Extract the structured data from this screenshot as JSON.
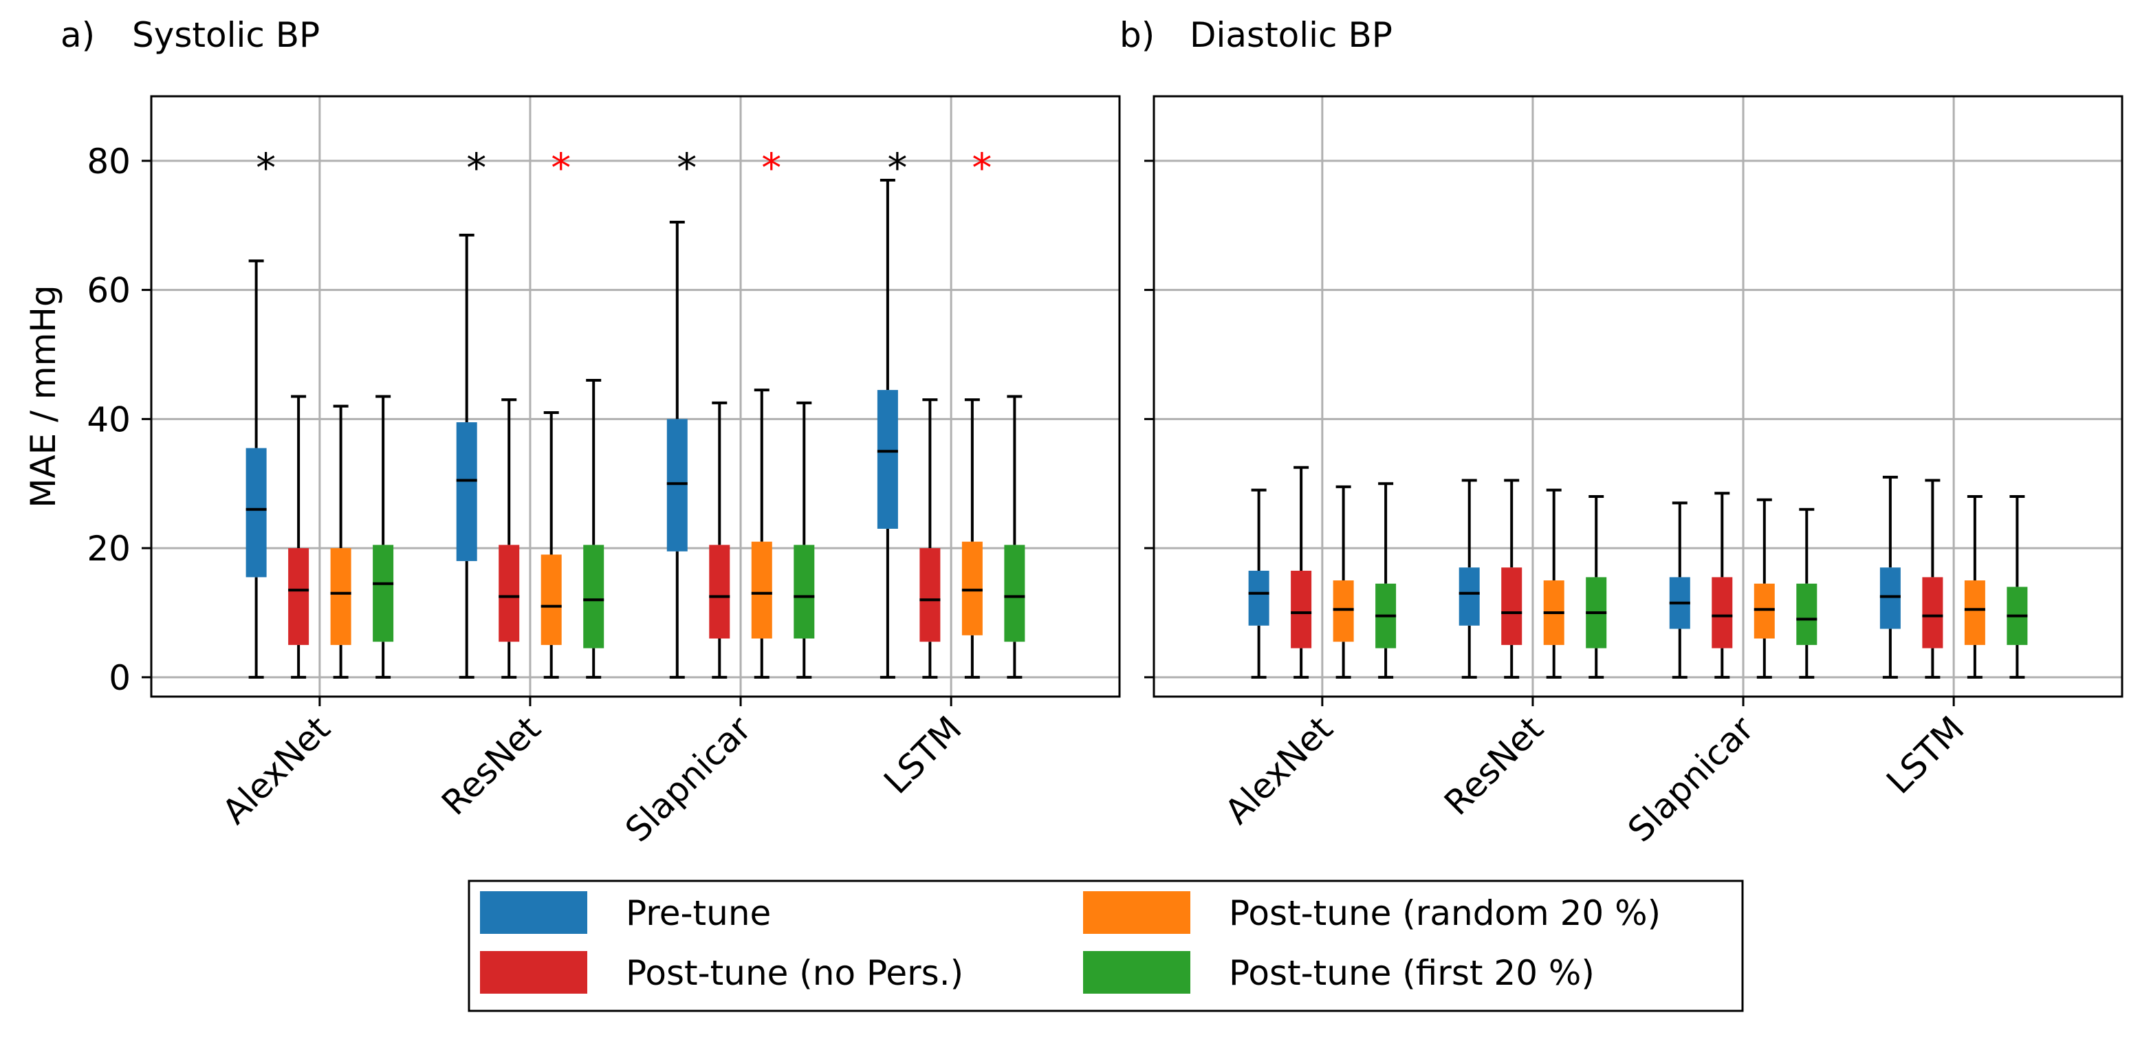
{
  "figure": {
    "legend": {
      "entries": [
        {
          "label": "Pre-tune",
          "color": "#1f77b4"
        },
        {
          "label": "Post-tune (random 20 %)",
          "color": "#ff7f0e"
        },
        {
          "label": "Post-tune (no Pers.)",
          "color": "#d62728"
        },
        {
          "label": "Post-tune (first 20 %)",
          "color": "#2ca02c"
        }
      ]
    }
  },
  "chart_data": [
    {
      "type": "box",
      "panel_letter": "a)",
      "title": "Systolic BP",
      "ylabel": "MAE / mmHg",
      "xlabel": "",
      "ylim": [
        -3,
        90
      ],
      "yticks": [
        0,
        20,
        40,
        60,
        80
      ],
      "grid": true,
      "categories": [
        "AlexNet",
        "ResNet",
        "Slapnicar",
        "LSTM"
      ],
      "series": [
        {
          "name": "Pre-tune",
          "color": "#1f77b4",
          "boxes": [
            {
              "min": 0,
              "q1": 15.5,
              "median": 26,
              "q3": 35.5,
              "max": 64.5
            },
            {
              "min": 0,
              "q1": 18,
              "median": 30.5,
              "q3": 39.5,
              "max": 68.5
            },
            {
              "min": 0,
              "q1": 19.5,
              "median": 30,
              "q3": 40,
              "max": 70.5
            },
            {
              "min": 0,
              "q1": 23,
              "median": 35,
              "q3": 44.5,
              "max": 77
            }
          ]
        },
        {
          "name": "Post-tune (no Pers.)",
          "color": "#d62728",
          "boxes": [
            {
              "min": 0,
              "q1": 5,
              "median": 13.5,
              "q3": 20,
              "max": 43.5
            },
            {
              "min": 0,
              "q1": 5.5,
              "median": 12.5,
              "q3": 20.5,
              "max": 43
            },
            {
              "min": 0,
              "q1": 6,
              "median": 12.5,
              "q3": 20.5,
              "max": 42.5
            },
            {
              "min": 0,
              "q1": 5.5,
              "median": 12,
              "q3": 20,
              "max": 43
            }
          ]
        },
        {
          "name": "Post-tune (random 20 %)",
          "color": "#ff7f0e",
          "boxes": [
            {
              "min": 0,
              "q1": 5,
              "median": 13,
              "q3": 20,
              "max": 42
            },
            {
              "min": 0,
              "q1": 5,
              "median": 11,
              "q3": 19,
              "max": 41
            },
            {
              "min": 0,
              "q1": 6,
              "median": 13,
              "q3": 21,
              "max": 44.5
            },
            {
              "min": 0,
              "q1": 6.5,
              "median": 13.5,
              "q3": 21,
              "max": 43
            }
          ]
        },
        {
          "name": "Post-tune (first 20 %)",
          "color": "#2ca02c",
          "boxes": [
            {
              "min": 0,
              "q1": 5.5,
              "median": 14.5,
              "q3": 20.5,
              "max": 43.5
            },
            {
              "min": 0,
              "q1": 4.5,
              "median": 12,
              "q3": 20.5,
              "max": 46
            },
            {
              "min": 0,
              "q1": 6,
              "median": 12.5,
              "q3": 20.5,
              "max": 42.5
            },
            {
              "min": 0,
              "q1": 5.5,
              "median": 12.5,
              "q3": 20.5,
              "max": 43.5
            }
          ]
        }
      ],
      "annotations": [
        {
          "category": "AlexNet",
          "series": "Pre-tune",
          "y": 80,
          "text": "*",
          "color": "#000000"
        },
        {
          "category": "ResNet",
          "series": "Pre-tune",
          "y": 80,
          "text": "*",
          "color": "#000000"
        },
        {
          "category": "ResNet",
          "series": "Post-tune (random 20 %)",
          "y": 80,
          "text": "*",
          "color": "#ff0000"
        },
        {
          "category": "Slapnicar",
          "series": "Pre-tune",
          "y": 80,
          "text": "*",
          "color": "#000000"
        },
        {
          "category": "Slapnicar",
          "series": "Post-tune (random 20 %)",
          "y": 80,
          "text": "*",
          "color": "#ff0000"
        },
        {
          "category": "LSTM",
          "series": "Pre-tune",
          "y": 80,
          "text": "*",
          "color": "#000000"
        },
        {
          "category": "LSTM",
          "series": "Post-tune (random 20 %)",
          "y": 80,
          "text": "*",
          "color": "#ff0000"
        }
      ]
    },
    {
      "type": "box",
      "panel_letter": "b)",
      "title": "Diastolic BP",
      "ylabel": "",
      "xlabel": "",
      "ylim": [
        -3,
        90
      ],
      "yticks": [
        0,
        20,
        40,
        60,
        80
      ],
      "grid": true,
      "categories": [
        "AlexNet",
        "ResNet",
        "Slapnicar",
        "LSTM"
      ],
      "series": [
        {
          "name": "Pre-tune",
          "color": "#1f77b4",
          "boxes": [
            {
              "min": 0,
              "q1": 8,
              "median": 13,
              "q3": 16.5,
              "max": 29
            },
            {
              "min": 0,
              "q1": 8,
              "median": 13,
              "q3": 17,
              "max": 30.5
            },
            {
              "min": 0,
              "q1": 7.5,
              "median": 11.5,
              "q3": 15.5,
              "max": 27
            },
            {
              "min": 0,
              "q1": 7.5,
              "median": 12.5,
              "q3": 17,
              "max": 31
            }
          ]
        },
        {
          "name": "Post-tune (no Pers.)",
          "color": "#d62728",
          "boxes": [
            {
              "min": 0,
              "q1": 4.5,
              "median": 10,
              "q3": 16.5,
              "max": 32.5
            },
            {
              "min": 0,
              "q1": 5,
              "median": 10,
              "q3": 17,
              "max": 30.5
            },
            {
              "min": 0,
              "q1": 4.5,
              "median": 9.5,
              "q3": 15.5,
              "max": 28.5
            },
            {
              "min": 0,
              "q1": 4.5,
              "median": 9.5,
              "q3": 15.5,
              "max": 30.5
            }
          ]
        },
        {
          "name": "Post-tune (random 20 %)",
          "color": "#ff7f0e",
          "boxes": [
            {
              "min": 0,
              "q1": 5.5,
              "median": 10.5,
              "q3": 15,
              "max": 29.5
            },
            {
              "min": 0,
              "q1": 5,
              "median": 10,
              "q3": 15,
              "max": 29
            },
            {
              "min": 0,
              "q1": 6,
              "median": 10.5,
              "q3": 14.5,
              "max": 27.5
            },
            {
              "min": 0,
              "q1": 5,
              "median": 10.5,
              "q3": 15,
              "max": 28
            }
          ]
        },
        {
          "name": "Post-tune (first 20 %)",
          "color": "#2ca02c",
          "boxes": [
            {
              "min": 0,
              "q1": 4.5,
              "median": 9.5,
              "q3": 14.5,
              "max": 30
            },
            {
              "min": 0,
              "q1": 4.5,
              "median": 10,
              "q3": 15.5,
              "max": 28
            },
            {
              "min": 0,
              "q1": 5,
              "median": 9,
              "q3": 14.5,
              "max": 26
            },
            {
              "min": 0,
              "q1": 5,
              "median": 9.5,
              "q3": 14,
              "max": 28
            }
          ]
        }
      ],
      "annotations": []
    }
  ]
}
